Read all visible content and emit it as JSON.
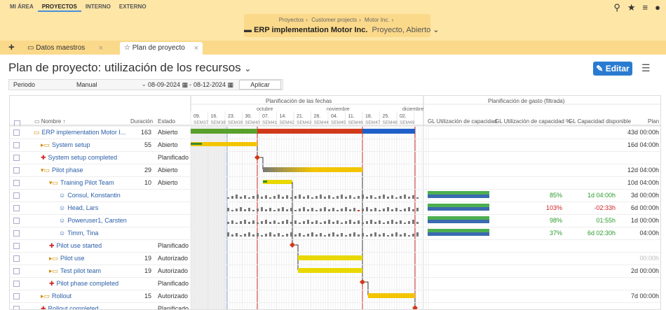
{
  "topnav": [
    "MI ÁREA",
    "PROYECTOS",
    "INTERNO",
    "EXTERNO"
  ],
  "breadcrumbs": [
    "Proyectos",
    "Customer projects",
    "Motor Inc."
  ],
  "project": {
    "title": "ERP implementation Motor Inc.",
    "status": "Proyecto, Abierto"
  },
  "tabs": [
    "Datos maestros",
    "Plan de proyecto"
  ],
  "page_title": "Plan de proyecto: utilización de los recursos",
  "edit_label": "Editar",
  "filter": {
    "period_label": "Periodo",
    "mode": "Manual",
    "from": "08-09-2024",
    "to": "08-12-2024",
    "apply": "Aplicar"
  },
  "columns": {
    "name": "Nombre",
    "duration": "Duración",
    "state": "Estado",
    "plan_dates": "Planificación de las fechas",
    "plan_cost": "Planificación de gasto (filtrada)",
    "util": "GL Utilización de capacidad",
    "util_pct": "GL Utilización de capacidad %",
    "cap_avail": "GL Capacidad disponible",
    "plan": "Plan"
  },
  "months": [
    "octubre",
    "noviembre",
    "diciembre"
  ],
  "weeks": [
    {
      "day": "09.",
      "sem": "SEM37"
    },
    {
      "day": "16.",
      "sem": "SEM38"
    },
    {
      "day": "23.",
      "sem": "SEM39"
    },
    {
      "day": "30.",
      "sem": "SEM40"
    },
    {
      "day": "07.",
      "sem": "SEM41"
    },
    {
      "day": "14.",
      "sem": "SEM42"
    },
    {
      "day": "21.",
      "sem": "SEM43"
    },
    {
      "day": "28.",
      "sem": "SEM44"
    },
    {
      "day": "04.",
      "sem": "SEM45"
    },
    {
      "day": "11.",
      "sem": "SEM46"
    },
    {
      "day": "18.",
      "sem": "SEM47"
    },
    {
      "day": "25.",
      "sem": "SEM48"
    },
    {
      "day": "02.",
      "sem": "SEM49"
    }
  ],
  "rows": [
    {
      "name": "ERP implementation Motor I...",
      "duration": "163",
      "state": "Abierto",
      "plan": "43d 00:00h"
    },
    {
      "name": "System setup",
      "duration": "55",
      "state": "Abierto",
      "plan": "16d 04:00h"
    },
    {
      "name": "System setup completed",
      "duration": "",
      "state": "Planificado",
      "plan": ""
    },
    {
      "name": "Pilot phase",
      "duration": "29",
      "state": "Abierto",
      "plan": "12d 04:00h"
    },
    {
      "name": "Training Pilot Team",
      "duration": "10",
      "state": "Abierto",
      "plan": "10d 04:00h"
    },
    {
      "name": "Consul, Konstantin",
      "duration": "",
      "state": "",
      "pct": "85%",
      "cap": "1d 04:00h",
      "plan": "3d 00:00h"
    },
    {
      "name": "Head, Lars",
      "duration": "",
      "state": "",
      "pct": "103%",
      "cap": "-02:33h",
      "plan": "6d 00:00h"
    },
    {
      "name": "Poweruser1, Carsten",
      "duration": "",
      "state": "",
      "pct": "98%",
      "cap": "01:55h",
      "plan": "1d 00:00h"
    },
    {
      "name": "Timm, Tina",
      "duration": "",
      "state": "",
      "pct": "37%",
      "cap": "6d 02:30h",
      "plan": "04:00h"
    },
    {
      "name": "Pilot use started",
      "duration": "",
      "state": "Planificado",
      "plan": ""
    },
    {
      "name": "Pilot use",
      "duration": "19",
      "state": "Autorizado",
      "plan": "00:00h"
    },
    {
      "name": "Test pilot team",
      "duration": "19",
      "state": "Autorizado",
      "plan": "2d 00:00h"
    },
    {
      "name": "Pilot phase completed",
      "duration": "",
      "state": "Planificado",
      "plan": ""
    },
    {
      "name": "Rollout",
      "duration": "15",
      "state": "Autorizado",
      "plan": "7d 00:00h"
    },
    {
      "name": "Rollout completed",
      "duration": "",
      "state": "Planificado",
      "plan": ""
    }
  ],
  "colors": {
    "header_bg": "#fde6a6",
    "accent": "#2a7bd0",
    "bar_yellow": "#f2c500",
    "bar_green": "#5aa02c",
    "bar_red": "#d03a1a",
    "bar_blue": "#1f5fc8"
  }
}
